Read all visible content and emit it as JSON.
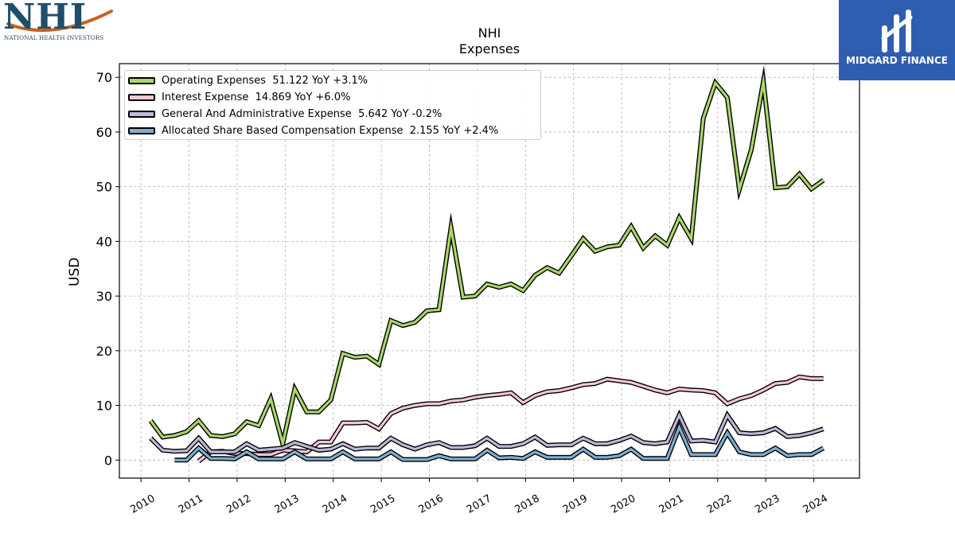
{
  "branding": {
    "left_logo_text": "NHI",
    "left_logo_subtitle": "NATIONAL HEALTH INVESTORS",
    "right_logo_text": "MIDGARD FINANCE",
    "right_logo_bg": "#2f5db0"
  },
  "chart_data": {
    "type": "line",
    "title": "NHI",
    "subtitle": "Expenses",
    "ylabel": "USD",
    "xlabel": "",
    "ylim": [
      -3.3,
      72.5
    ],
    "xlim": [
      2009.55,
      2024.95
    ],
    "yticks": [
      0,
      10,
      20,
      30,
      40,
      50,
      60,
      70
    ],
    "xticks": [
      "2010",
      "2011",
      "2012",
      "2013",
      "2014",
      "2015",
      "2016",
      "2017",
      "2018",
      "2019",
      "2020",
      "2021",
      "2022",
      "2023",
      "2024"
    ],
    "grid": true,
    "legend_position": "top-left",
    "series": [
      {
        "name": "Operating Expenses",
        "legend": "Operating Expenses  51.122 YoY +3.1%",
        "color": "#a8d86a",
        "points": [
          [
            2010.2,
            7.2
          ],
          [
            2010.45,
            4.2
          ],
          [
            2010.7,
            4.5
          ],
          [
            2010.95,
            5.2
          ],
          [
            2011.2,
            7.2
          ],
          [
            2011.45,
            4.5
          ],
          [
            2011.7,
            4.3
          ],
          [
            2011.95,
            4.8
          ],
          [
            2012.2,
            7.0
          ],
          [
            2012.45,
            6.3
          ],
          [
            2012.7,
            11.2
          ],
          [
            2012.95,
            3.0
          ],
          [
            2013.2,
            13.0
          ],
          [
            2013.45,
            8.8
          ],
          [
            2013.7,
            8.8
          ],
          [
            2013.95,
            11.0
          ],
          [
            2014.2,
            19.5
          ],
          [
            2014.45,
            18.8
          ],
          [
            2014.7,
            19.0
          ],
          [
            2014.95,
            17.5
          ],
          [
            2015.2,
            25.5
          ],
          [
            2015.45,
            24.6
          ],
          [
            2015.7,
            25.2
          ],
          [
            2015.95,
            27.3
          ],
          [
            2016.2,
            27.5
          ],
          [
            2016.45,
            42.5
          ],
          [
            2016.7,
            29.8
          ],
          [
            2016.95,
            30.0
          ],
          [
            2017.2,
            32.2
          ],
          [
            2017.45,
            31.6
          ],
          [
            2017.7,
            32.2
          ],
          [
            2017.95,
            31.0
          ],
          [
            2018.2,
            33.8
          ],
          [
            2018.45,
            35.2
          ],
          [
            2018.7,
            34.2
          ],
          [
            2018.95,
            37.3
          ],
          [
            2019.2,
            40.5
          ],
          [
            2019.45,
            38.2
          ],
          [
            2019.7,
            39.0
          ],
          [
            2019.95,
            39.3
          ],
          [
            2020.2,
            42.7
          ],
          [
            2020.45,
            38.8
          ],
          [
            2020.7,
            41.0
          ],
          [
            2020.95,
            39.3
          ],
          [
            2021.2,
            44.3
          ],
          [
            2021.45,
            40.5
          ],
          [
            2021.7,
            62.5
          ],
          [
            2021.95,
            69.0
          ],
          [
            2022.2,
            66.3
          ],
          [
            2022.45,
            49.5
          ],
          [
            2022.7,
            56.8
          ],
          [
            2022.95,
            69.2
          ],
          [
            2023.2,
            49.8
          ],
          [
            2023.45,
            50.0
          ],
          [
            2023.7,
            52.3
          ],
          [
            2023.95,
            49.6
          ],
          [
            2024.2,
            51.2
          ]
        ]
      },
      {
        "name": "Interest Expense",
        "legend": "Interest Expense  14.869 YoY +6.0%",
        "color": "#f9c6dc",
        "points": [
          [
            2011.2,
            -0.2
          ],
          [
            2011.45,
            1.5
          ],
          [
            2011.7,
            1.6
          ],
          [
            2011.95,
            1.2
          ],
          [
            2012.2,
            1.2
          ],
          [
            2012.45,
            1.0
          ],
          [
            2012.7,
            1.0
          ],
          [
            2012.95,
            1.8
          ],
          [
            2013.2,
            1.7
          ],
          [
            2013.45,
            1.5
          ],
          [
            2013.7,
            3.3
          ],
          [
            2013.95,
            3.3
          ],
          [
            2014.2,
            6.8
          ],
          [
            2014.45,
            6.8
          ],
          [
            2014.7,
            6.9
          ],
          [
            2014.95,
            5.7
          ],
          [
            2015.2,
            8.5
          ],
          [
            2015.45,
            9.5
          ],
          [
            2015.7,
            10.0
          ],
          [
            2015.95,
            10.3
          ],
          [
            2016.2,
            10.3
          ],
          [
            2016.45,
            10.8
          ],
          [
            2016.7,
            11.0
          ],
          [
            2016.95,
            11.5
          ],
          [
            2017.2,
            11.8
          ],
          [
            2017.45,
            12.0
          ],
          [
            2017.7,
            12.3
          ],
          [
            2017.95,
            10.5
          ],
          [
            2018.2,
            11.8
          ],
          [
            2018.45,
            12.5
          ],
          [
            2018.7,
            12.7
          ],
          [
            2018.95,
            13.2
          ],
          [
            2019.2,
            13.8
          ],
          [
            2019.45,
            14.0
          ],
          [
            2019.7,
            14.8
          ],
          [
            2019.95,
            14.5
          ],
          [
            2020.2,
            14.2
          ],
          [
            2020.45,
            13.5
          ],
          [
            2020.7,
            12.8
          ],
          [
            2020.95,
            12.3
          ],
          [
            2021.2,
            13.0
          ],
          [
            2021.45,
            12.8
          ],
          [
            2021.7,
            12.7
          ],
          [
            2021.95,
            12.3
          ],
          [
            2022.2,
            10.3
          ],
          [
            2022.45,
            11.2
          ],
          [
            2022.7,
            11.8
          ],
          [
            2022.95,
            12.8
          ],
          [
            2023.2,
            14.0
          ],
          [
            2023.45,
            14.2
          ],
          [
            2023.7,
            15.2
          ],
          [
            2023.95,
            14.9
          ],
          [
            2024.2,
            14.9
          ]
        ]
      },
      {
        "name": "General And Administrative Expense",
        "legend": "General And Administrative Expense  5.642 YoY -0.2%",
        "color": "#beb8da",
        "points": [
          [
            2010.2,
            4.0
          ],
          [
            2010.45,
            1.8
          ],
          [
            2010.7,
            1.6
          ],
          [
            2010.95,
            1.7
          ],
          [
            2011.2,
            4.0
          ],
          [
            2011.45,
            1.5
          ],
          [
            2011.7,
            1.5
          ],
          [
            2011.95,
            1.5
          ],
          [
            2012.2,
            3.0
          ],
          [
            2012.45,
            1.8
          ],
          [
            2012.7,
            2.0
          ],
          [
            2012.95,
            2.2
          ],
          [
            2013.2,
            3.2
          ],
          [
            2013.45,
            2.5
          ],
          [
            2013.7,
            1.8
          ],
          [
            2013.95,
            2.0
          ],
          [
            2014.2,
            3.0
          ],
          [
            2014.45,
            2.0
          ],
          [
            2014.7,
            2.2
          ],
          [
            2014.95,
            2.2
          ],
          [
            2015.2,
            4.0
          ],
          [
            2015.45,
            2.8
          ],
          [
            2015.7,
            2.0
          ],
          [
            2015.95,
            2.8
          ],
          [
            2016.2,
            3.2
          ],
          [
            2016.45,
            2.3
          ],
          [
            2016.7,
            2.3
          ],
          [
            2016.95,
            2.6
          ],
          [
            2017.2,
            4.0
          ],
          [
            2017.45,
            2.5
          ],
          [
            2017.7,
            2.5
          ],
          [
            2017.95,
            3.0
          ],
          [
            2018.2,
            4.2
          ],
          [
            2018.45,
            2.7
          ],
          [
            2018.7,
            2.8
          ],
          [
            2018.95,
            2.8
          ],
          [
            2019.2,
            4.0
          ],
          [
            2019.45,
            3.0
          ],
          [
            2019.7,
            3.0
          ],
          [
            2019.95,
            3.6
          ],
          [
            2020.2,
            4.4
          ],
          [
            2020.45,
            3.2
          ],
          [
            2020.7,
            3.0
          ],
          [
            2020.95,
            3.3
          ],
          [
            2021.2,
            8.2
          ],
          [
            2021.45,
            3.5
          ],
          [
            2021.7,
            3.6
          ],
          [
            2021.95,
            3.3
          ],
          [
            2022.2,
            8.2
          ],
          [
            2022.45,
            5.0
          ],
          [
            2022.7,
            4.8
          ],
          [
            2022.95,
            5.0
          ],
          [
            2023.2,
            5.8
          ],
          [
            2023.45,
            4.3
          ],
          [
            2023.7,
            4.5
          ],
          [
            2023.95,
            5.0
          ],
          [
            2024.2,
            5.7
          ]
        ]
      },
      {
        "name": "Allocated Share Based Compensation Expense",
        "legend": "Allocated Share Based Compensation Expense  2.155 YoY +2.4%",
        "color": "#7faed3",
        "points": [
          [
            2010.7,
            0.0
          ],
          [
            2010.95,
            0.0
          ],
          [
            2011.2,
            2.2
          ],
          [
            2011.45,
            0.3
          ],
          [
            2011.7,
            0.3
          ],
          [
            2011.95,
            0.2
          ],
          [
            2012.2,
            1.5
          ],
          [
            2012.45,
            0.2
          ],
          [
            2012.7,
            0.2
          ],
          [
            2012.95,
            0.2
          ],
          [
            2013.2,
            1.5
          ],
          [
            2013.45,
            0.2
          ],
          [
            2013.7,
            0.2
          ],
          [
            2013.95,
            0.2
          ],
          [
            2014.2,
            1.5
          ],
          [
            2014.45,
            0.2
          ],
          [
            2014.7,
            0.2
          ],
          [
            2014.95,
            0.2
          ],
          [
            2015.2,
            1.5
          ],
          [
            2015.45,
            0.1
          ],
          [
            2015.7,
            0.1
          ],
          [
            2015.95,
            0.1
          ],
          [
            2016.2,
            0.8
          ],
          [
            2016.45,
            0.2
          ],
          [
            2016.7,
            0.2
          ],
          [
            2016.95,
            0.2
          ],
          [
            2017.2,
            1.8
          ],
          [
            2017.45,
            0.4
          ],
          [
            2017.7,
            0.5
          ],
          [
            2017.95,
            0.3
          ],
          [
            2018.2,
            1.5
          ],
          [
            2018.45,
            0.5
          ],
          [
            2018.7,
            0.5
          ],
          [
            2018.95,
            0.5
          ],
          [
            2019.2,
            2.0
          ],
          [
            2019.45,
            0.5
          ],
          [
            2019.7,
            0.5
          ],
          [
            2019.95,
            0.8
          ],
          [
            2020.2,
            2.0
          ],
          [
            2020.45,
            0.3
          ],
          [
            2020.7,
            0.3
          ],
          [
            2020.95,
            0.3
          ],
          [
            2021.2,
            6.0
          ],
          [
            2021.45,
            1.0
          ],
          [
            2021.7,
            1.0
          ],
          [
            2021.95,
            1.0
          ],
          [
            2022.2,
            5.0
          ],
          [
            2022.45,
            1.5
          ],
          [
            2022.7,
            1.0
          ],
          [
            2022.95,
            1.0
          ],
          [
            2023.2,
            2.2
          ],
          [
            2023.45,
            0.8
          ],
          [
            2023.7,
            1.0
          ],
          [
            2023.95,
            1.0
          ],
          [
            2024.2,
            2.2
          ]
        ]
      }
    ]
  }
}
